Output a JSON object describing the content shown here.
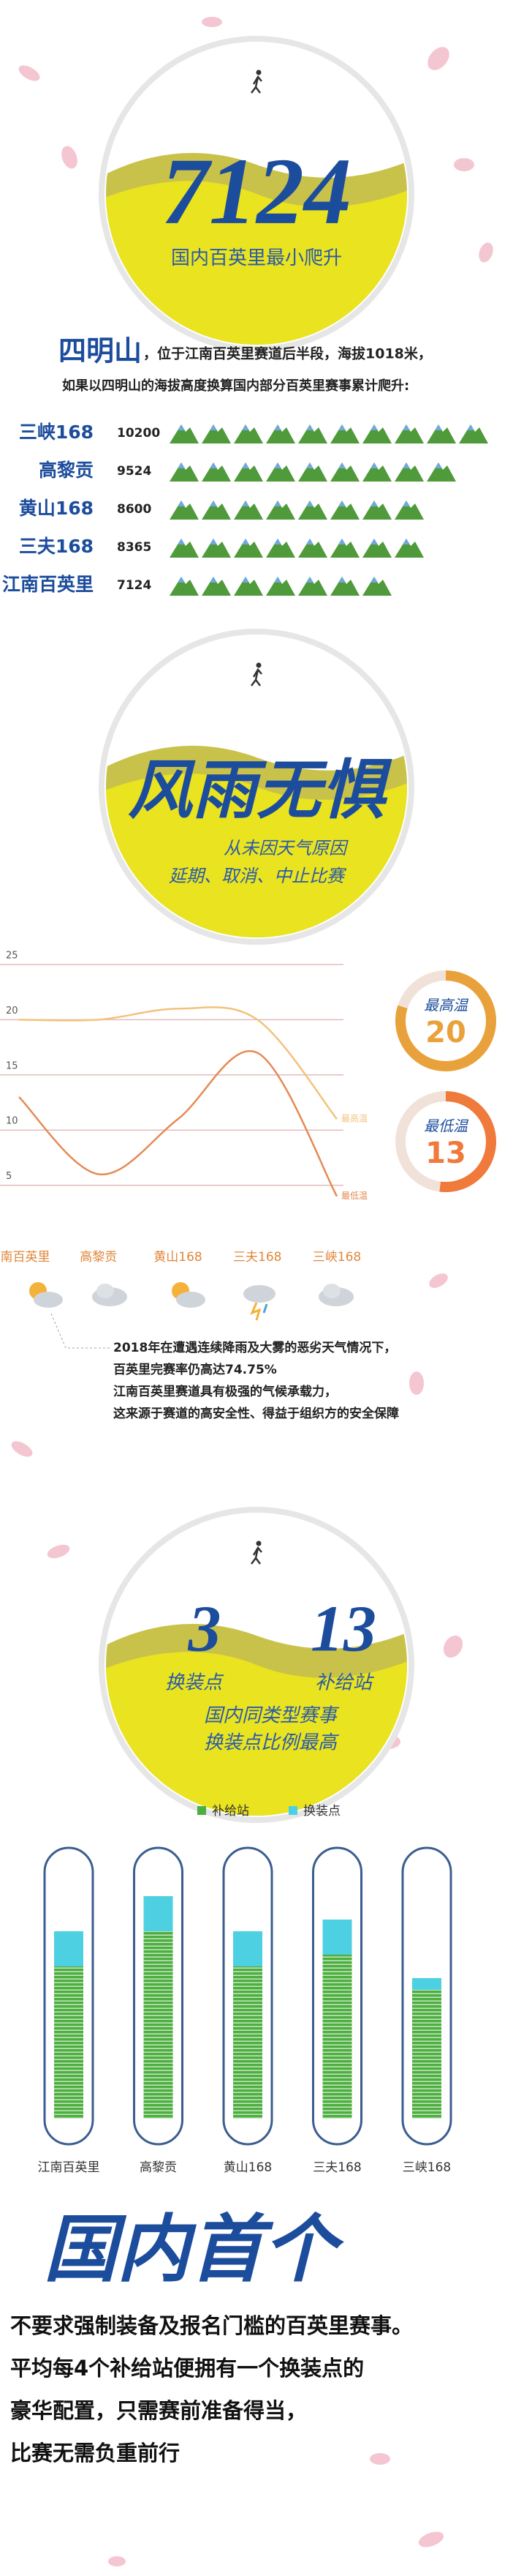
{
  "hero": {
    "number": 7124,
    "subtitle": "国内百英里最小爬升"
  },
  "intro": {
    "title": "四明山",
    "line1": "，位于江南百英里赛道后半段，海拔1018米，",
    "line2": "如果以四明山的海拔高度换算国内部分百英里赛事累计爬升:"
  },
  "weather": {
    "title": "风雨无惧",
    "lines": [
      "从未因天气原因",
      "延期、取消、中止比赛"
    ]
  },
  "note": {
    "lines": [
      "2018年在遭遇连续降雨及大雾的恶劣天气情况下，",
      "百英里完赛率仍高达74.75%",
      "江南百英里赛道具有极强的气候承载力，",
      "这来源于赛道的高安全性、得益于组织方的安全保障"
    ]
  },
  "stations": {
    "stats": [
      {
        "value": 3,
        "label": "换装点"
      },
      {
        "value": 13,
        "label": "补给站"
      }
    ],
    "caption": [
      "国内同类型赛事",
      "换装点比例最高"
    ]
  },
  "closing": {
    "title": "国内首个",
    "lines": [
      "不要求强制装备及报名门槛的百英里赛事。",
      "平均每4个补给站便拥有一个换装点的",
      "豪华配置，只需赛前准备得当，",
      "比赛无需负重前行"
    ]
  },
  "chart_data": [
    {
      "type": "pictograph",
      "categories": [
        "三峡168",
        "高黎贡",
        "黄山168",
        "三夫168",
        "江南百英里"
      ],
      "values": [
        10200,
        9524,
        8600,
        8365,
        7124
      ],
      "color": "#4f9a3a"
    },
    {
      "type": "line",
      "categories": [
        "江南百英里",
        "高黎贡",
        "黄山168",
        "三夫168",
        "三峡168"
      ],
      "series": [
        {
          "name": "最高温",
          "color": "#f3c27a",
          "values": [
            20,
            20,
            21,
            20,
            11
          ]
        },
        {
          "name": "最低温",
          "color": "#e58a55",
          "values": [
            13,
            6,
            11,
            17,
            4
          ]
        }
      ],
      "ylim": [
        0,
        25
      ],
      "yticks": [
        5,
        10,
        15,
        20,
        25
      ],
      "grid": true,
      "badges": [
        {
          "label": "最高温",
          "value": 20,
          "color": "#e9a23b"
        },
        {
          "label": "最低温",
          "value": 13,
          "color": "#ef7a3c"
        }
      ]
    },
    {
      "type": "stacked_bar",
      "categories": [
        "江南百英里",
        "高黎贡",
        "黄山168",
        "三夫168",
        "三峡168"
      ],
      "series": [
        {
          "name": "补给站",
          "color": "#4caf3f",
          "values": [
            13,
            16,
            13,
            14,
            11
          ]
        },
        {
          "name": "换装点",
          "color": "#4dd0e1",
          "values": [
            3,
            3,
            3,
            3,
            1
          ]
        }
      ]
    }
  ]
}
